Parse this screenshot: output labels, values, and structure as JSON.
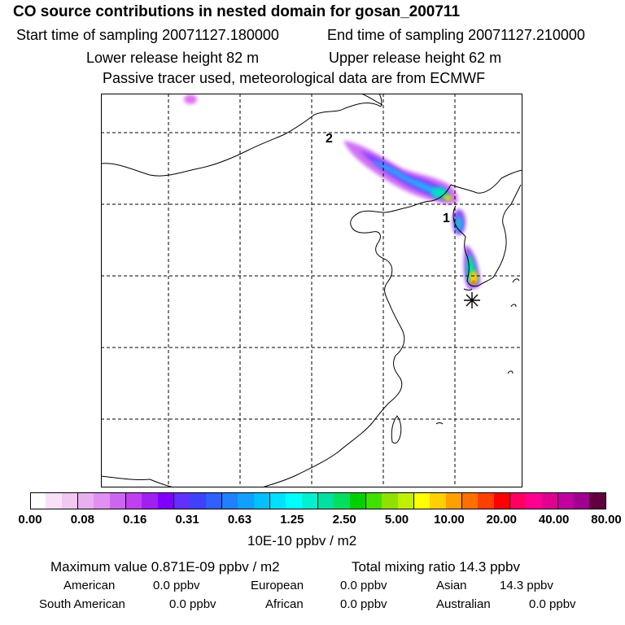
{
  "title": "CO  source contributions in nested domain for gosan_200711",
  "sampling": {
    "start": "Start time of sampling 20071127.180000",
    "end": "End time of sampling 20071127.210000"
  },
  "release": {
    "lower": "Lower release height   82 m",
    "upper": "Upper release height   62 m"
  },
  "tracer_note": "Passive tracer used, meteorological data are from ECMWF",
  "map": {
    "labels": {
      "label_1": "1",
      "label_2": "2"
    },
    "colors": {
      "frame": "#000000",
      "grid": "#000000",
      "coast": "#000000",
      "station": "#000000"
    }
  },
  "colorbar": {
    "tick_labels": [
      "0.00",
      "0.08",
      "0.16",
      "0.31",
      "0.63",
      "1.25",
      "2.50",
      "5.00",
      "10.00",
      "20.00",
      "40.00",
      "80.00"
    ],
    "swatch_colors": [
      "#ffffff",
      "#f8e0f8",
      "#f0c8f0",
      "#e8b0f0",
      "#e090f0",
      "#cc66f0",
      "#c040f0",
      "#a020f0",
      "#8000ff",
      "#6030ff",
      "#4040ff",
      "#3060ff",
      "#2080ff",
      "#10a0ff",
      "#00c0ff",
      "#00e0ff",
      "#00ffff",
      "#00f0d0",
      "#00e0a0",
      "#00e060",
      "#00d000",
      "#40e000",
      "#90e000",
      "#c0f000",
      "#ffff00",
      "#ffd000",
      "#ffa000",
      "#ff7000",
      "#ff4000",
      "#ff0000",
      "#ff0060",
      "#ff0090",
      "#e00090",
      "#c000a0",
      "#a00090",
      "#600040"
    ],
    "units": "10E-10 ppbv / m2"
  },
  "stats": {
    "max_value": "Maximum value  0.871E-09 ppbv / m2",
    "total_mixing": "Total mixing ratio       14.3 ppbv"
  },
  "regions": [
    {
      "name": "American",
      "value": "0.0 ppbv"
    },
    {
      "name": "European",
      "value": "0.0 ppbv"
    },
    {
      "name": "Asian",
      "value": "14.3 ppbv"
    },
    {
      "name": "South American",
      "value": "0.0 ppbv"
    },
    {
      "name": "African",
      "value": "0.0 ppbv"
    },
    {
      "name": "Australian",
      "value": "0.0 ppbv"
    }
  ]
}
